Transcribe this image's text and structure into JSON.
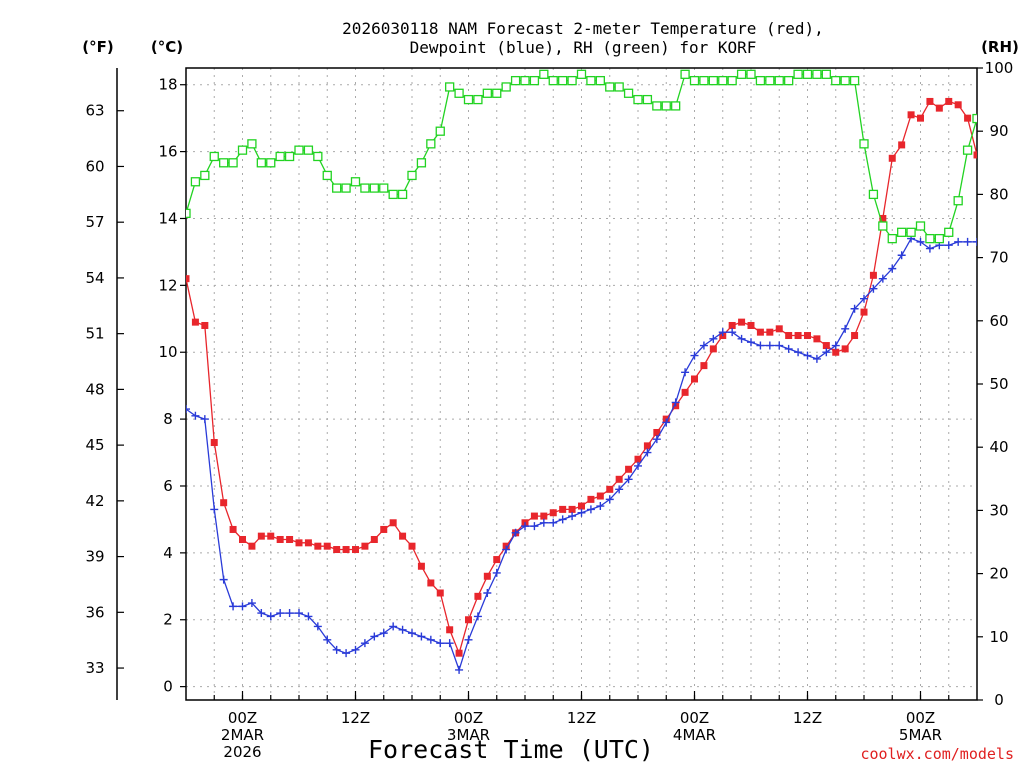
{
  "colors": {
    "temperature": "#e8262c",
    "dewpoint": "#2a3bd8",
    "rh": "#22d322",
    "credit": "#e02020",
    "grid": "#aaaaaa"
  },
  "chart_data": {
    "type": "line",
    "title_line1": "2026030118 NAM Forecast 2-meter Temperature (red),",
    "title_line2": "Dewpoint (blue), RH (green) for KORF",
    "xlabel": "Forecast Time (UTC)",
    "credit": "coolwx.com/models",
    "x_unit": "hours since 2026030118 UTC",
    "xlim": [
      0,
      84
    ],
    "left_axis": {
      "label": "(°C)",
      "ylim": [
        -0.4,
        18.5
      ],
      "ticks": [
        0,
        2,
        4,
        6,
        8,
        10,
        12,
        14,
        16,
        18
      ]
    },
    "far_left_axis": {
      "label": "(°F)",
      "ticks": [
        33,
        36,
        39,
        42,
        45,
        48,
        51,
        54,
        57,
        60,
        63
      ]
    },
    "right_axis": {
      "label": "(RH)",
      "ylim": [
        0,
        100
      ],
      "ticks": [
        0,
        10,
        20,
        30,
        40,
        50,
        60,
        70,
        80,
        90,
        100
      ]
    },
    "x_ticks": [
      {
        "x": 6,
        "line1": "00Z",
        "line2": "2MAR",
        "line3": "2026"
      },
      {
        "x": 18,
        "line1": "12Z",
        "line2": "",
        "line3": ""
      },
      {
        "x": 30,
        "line1": "00Z",
        "line2": "3MAR",
        "line3": ""
      },
      {
        "x": 42,
        "line1": "12Z",
        "line2": "",
        "line3": ""
      },
      {
        "x": 54,
        "line1": "00Z",
        "line2": "4MAR",
        "line3": ""
      },
      {
        "x": 66,
        "line1": "12Z",
        "line2": "",
        "line3": ""
      },
      {
        "x": 78,
        "line1": "00Z",
        "line2": "5MAR",
        "line3": ""
      }
    ],
    "series": [
      {
        "name": "Temperature",
        "units": "C",
        "marker": "square-filled",
        "x": [
          0,
          1,
          2,
          3,
          4,
          5,
          6,
          7,
          8,
          9,
          10,
          11,
          12,
          13,
          14,
          15,
          16,
          17,
          18,
          19,
          20,
          21,
          22,
          23,
          24,
          25,
          26,
          27,
          28,
          29,
          30,
          31,
          32,
          33,
          34,
          35,
          36,
          37,
          38,
          39,
          40,
          41,
          42,
          43,
          44,
          45,
          46,
          47,
          48,
          49,
          50,
          51,
          52,
          53,
          54,
          55,
          56,
          57,
          58,
          59,
          60,
          61,
          62,
          63,
          64,
          65,
          66,
          67,
          68,
          69,
          70,
          71,
          72,
          73,
          74,
          75,
          76,
          77,
          78,
          79,
          80,
          81,
          82,
          83,
          84
        ],
        "y": [
          12.2,
          10.9,
          10.8,
          7.3,
          5.5,
          4.7,
          4.4,
          4.2,
          4.5,
          4.5,
          4.4,
          4.4,
          4.3,
          4.3,
          4.2,
          4.2,
          4.1,
          4.1,
          4.1,
          4.2,
          4.4,
          4.7,
          4.9,
          4.5,
          4.2,
          3.6,
          3.1,
          2.8,
          1.7,
          1.0,
          2.0,
          2.7,
          3.3,
          3.8,
          4.2,
          4.6,
          4.9,
          5.1,
          5.1,
          5.2,
          5.3,
          5.3,
          5.4,
          5.6,
          5.7,
          5.9,
          6.2,
          6.5,
          6.8,
          7.2,
          7.6,
          8.0,
          8.4,
          8.8,
          9.2,
          9.6,
          10.1,
          10.5,
          10.8,
          10.9,
          10.8,
          10.6,
          10.6,
          10.7,
          10.5,
          10.5,
          10.5,
          10.4,
          10.2,
          10.0,
          10.1,
          10.5,
          11.2,
          12.3,
          14.0,
          15.8,
          16.2,
          17.1,
          17.0,
          17.5,
          17.3,
          17.5,
          17.4,
          17.0,
          15.9
        ]
      },
      {
        "name": "Dewpoint",
        "units": "C",
        "marker": "plus",
        "x": [
          0,
          1,
          2,
          3,
          4,
          5,
          6,
          7,
          8,
          9,
          10,
          11,
          12,
          13,
          14,
          15,
          16,
          17,
          18,
          19,
          20,
          21,
          22,
          23,
          24,
          25,
          26,
          27,
          28,
          29,
          30,
          31,
          32,
          33,
          34,
          35,
          36,
          37,
          38,
          39,
          40,
          41,
          42,
          43,
          44,
          45,
          46,
          47,
          48,
          49,
          50,
          51,
          52,
          53,
          54,
          55,
          56,
          57,
          58,
          59,
          60,
          61,
          62,
          63,
          64,
          65,
          66,
          67,
          68,
          69,
          70,
          71,
          72,
          73,
          74,
          75,
          76,
          77,
          78,
          79,
          80,
          81,
          82,
          83,
          84
        ],
        "y": [
          8.3,
          8.1,
          8.0,
          5.3,
          3.2,
          2.4,
          2.4,
          2.5,
          2.2,
          2.1,
          2.2,
          2.2,
          2.2,
          2.1,
          1.8,
          1.4,
          1.1,
          1.0,
          1.1,
          1.3,
          1.5,
          1.6,
          1.8,
          1.7,
          1.6,
          1.5,
          1.4,
          1.3,
          1.3,
          0.5,
          1.4,
          2.1,
          2.8,
          3.4,
          4.1,
          4.6,
          4.8,
          4.8,
          4.9,
          4.9,
          5.0,
          5.1,
          5.2,
          5.3,
          5.4,
          5.6,
          5.9,
          6.2,
          6.6,
          7.0,
          7.4,
          7.9,
          8.5,
          9.4,
          9.9,
          10.2,
          10.4,
          10.6,
          10.6,
          10.4,
          10.3,
          10.2,
          10.2,
          10.2,
          10.1,
          10.0,
          9.9,
          9.8,
          10.0,
          10.2,
          10.7,
          11.3,
          11.6,
          11.9,
          12.2,
          12.5,
          12.9,
          13.4,
          13.3,
          13.1,
          13.2,
          13.2,
          13.3,
          13.3,
          13.3
        ]
      },
      {
        "name": "RH",
        "units": "%",
        "axis": "right",
        "marker": "square-open",
        "x": [
          0,
          1,
          2,
          3,
          4,
          5,
          6,
          7,
          8,
          9,
          10,
          11,
          12,
          13,
          14,
          15,
          16,
          17,
          18,
          19,
          20,
          21,
          22,
          23,
          24,
          25,
          26,
          27,
          28,
          29,
          30,
          31,
          32,
          33,
          34,
          35,
          36,
          37,
          38,
          39,
          40,
          41,
          42,
          43,
          44,
          45,
          46,
          47,
          48,
          49,
          50,
          51,
          52,
          53,
          54,
          55,
          56,
          57,
          58,
          59,
          60,
          61,
          62,
          63,
          64,
          65,
          66,
          67,
          68,
          69,
          70,
          71,
          72,
          73,
          74,
          75,
          76,
          77,
          78,
          79,
          80,
          81,
          82,
          83,
          84
        ],
        "y": [
          77,
          82,
          83,
          86,
          85,
          85,
          87,
          88,
          85,
          85,
          86,
          86,
          87,
          87,
          86,
          83,
          81,
          81,
          82,
          81,
          81,
          81,
          80,
          80,
          83,
          85,
          88,
          90,
          97,
          96,
          95,
          95,
          96,
          96,
          97,
          98,
          98,
          98,
          99,
          98,
          98,
          98,
          99,
          98,
          98,
          97,
          97,
          96,
          95,
          95,
          94,
          94,
          94,
          99,
          98,
          98,
          98,
          98,
          98,
          99,
          99,
          98,
          98,
          98,
          98,
          99,
          99,
          99,
          99,
          98,
          98,
          98,
          88,
          80,
          75,
          73,
          74,
          74,
          75,
          73,
          73,
          74,
          79,
          87,
          92
        ]
      }
    ]
  }
}
